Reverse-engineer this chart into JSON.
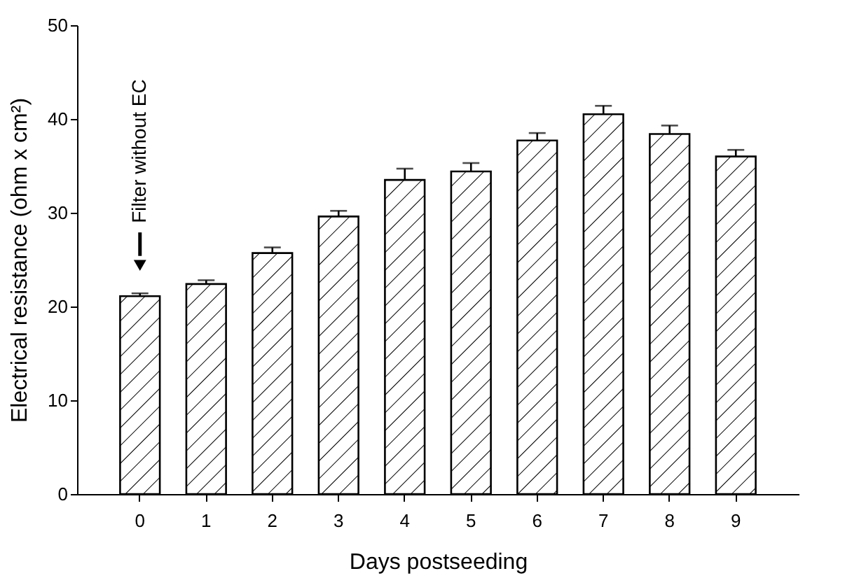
{
  "chart_data": {
    "type": "bar",
    "xlabel": "Days postseeding",
    "ylabel": "Electrical resistance (ohm x cm²)",
    "categories": [
      "0",
      "1",
      "2",
      "3",
      "4",
      "5",
      "6",
      "7",
      "8",
      "9"
    ],
    "values": [
      21.1,
      22.4,
      25.7,
      29.6,
      33.5,
      34.4,
      37.7,
      40.5,
      38.4,
      36.0
    ],
    "errors": [
      [
        21.1,
        21.4
      ],
      [
        22.4,
        22.8
      ],
      [
        25.7,
        26.3
      ],
      [
        29.6,
        30.2
      ],
      [
        33.5,
        34.7
      ],
      [
        34.4,
        35.3
      ],
      [
        37.7,
        38.5
      ],
      [
        40.5,
        41.4
      ],
      [
        38.4,
        39.3
      ],
      [
        36.0,
        36.7
      ]
    ],
    "color": "#000000",
    "ylim": [
      0,
      50
    ],
    "yticks": [
      0,
      10,
      20,
      30,
      40,
      50
    ],
    "annotations": [
      "Filter without EC"
    ]
  }
}
